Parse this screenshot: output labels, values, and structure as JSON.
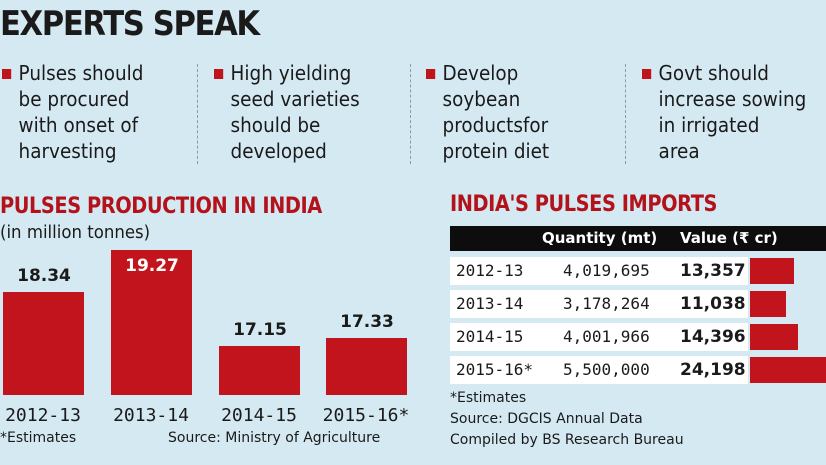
{
  "experts": {
    "title": "EXPERTS SPEAK",
    "tips": [
      [
        "Pulses should",
        "be procured",
        "with onset of",
        "harvesting"
      ],
      [
        "High yielding",
        "seed varieties",
        "should be",
        "developed"
      ],
      [
        "Develop",
        "soybean",
        "productsfor",
        "protein diet"
      ],
      [
        "Govt should",
        "increase sowing",
        "in irrigated",
        "area"
      ]
    ]
  },
  "colors": {
    "background": "#d5e9f2",
    "accent": "#c2141d"
  },
  "chart_data": [
    {
      "type": "bar",
      "title": "PULSES PRODUCTION IN INDIA",
      "ylabel": "(in million tonnes)",
      "categories": [
        "2012-13",
        "2013-14",
        "2014-15",
        "2015-16*"
      ],
      "values": [
        18.34,
        19.27,
        17.15,
        17.33
      ],
      "value_labels": [
        "18.34",
        "19.27",
        "17.15",
        "17.33"
      ],
      "ylim": [
        16.07,
        19.27
      ],
      "grid": false,
      "footnote": "*Estimates",
      "source": "Source: Ministry of Agriculture"
    },
    {
      "type": "table",
      "title": "INDIA'S PULSES IMPORTS",
      "columns": [
        "",
        "Quantity (mt)",
        "Value (₹ cr)"
      ],
      "rows": [
        {
          "year": "2012-13",
          "quantity": "4,019,695",
          "value_label": "13,357",
          "value": 13357
        },
        {
          "year": "2013-14",
          "quantity": "3,178,264",
          "value_label": "11,038",
          "value": 11038
        },
        {
          "year": "2014-15",
          "quantity": "4,001,966",
          "value_label": "14,396",
          "value": 14396
        },
        {
          "year": "2015-16*",
          "quantity": "5,500,000",
          "value_label": "24,198",
          "value": 24198
        }
      ],
      "footnote": "*Estimates",
      "source": "Source: DGCIS Annual Data",
      "compiled": "Compiled by BS Research Bureau"
    }
  ]
}
